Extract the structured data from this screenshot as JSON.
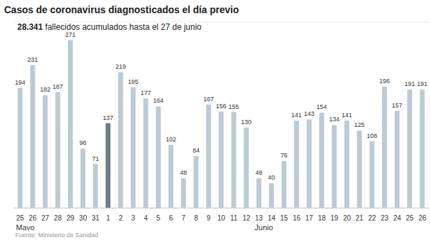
{
  "chart_data": {
    "type": "bar",
    "title": "Casos de coronavirus diagnosticados el día previo",
    "subtitle": "28.341 fallecidos acumulados hasta el 27 de junio",
    "source": "Fuente: Ministerio de Sanidad",
    "categories": [
      "25",
      "26",
      "27",
      "28",
      "29",
      "30",
      "31",
      "1",
      "2",
      "3",
      "4",
      "5",
      "6",
      "7",
      "8",
      "9",
      "10",
      "11",
      "12",
      "13",
      "14",
      "15",
      "16",
      "17",
      "18",
      "19",
      "20",
      "21",
      "22",
      "23",
      "24",
      "25",
      "26"
    ],
    "values": [
      194,
      231,
      182,
      187,
      271,
      96,
      71,
      137,
      219,
      195,
      177,
      164,
      102,
      48,
      84,
      167,
      156,
      155,
      130,
      48,
      40,
      76,
      141,
      143,
      154,
      134,
      141,
      125,
      108,
      196,
      157,
      191,
      191
    ],
    "colors": [
      "#bccad4",
      "#bccad4",
      "#bccad4",
      "#bccad4",
      "#bccad4",
      "#bccad4",
      "#bccad4",
      "#6f7c85",
      "#bccad4",
      "#bccad4",
      "#bccad4",
      "#bccad4",
      "#bccad4",
      "#bccad4",
      "#bccad4",
      "#bccad4",
      "#bccad4",
      "#bccad4",
      "#bccad4",
      "#bccad4",
      "#bccad4",
      "#bccad4",
      "#bccad4",
      "#bccad4",
      "#bccad4",
      "#bccad4",
      "#bccad4",
      "#bccad4",
      "#bccad4",
      "#bccad4",
      "#bccad4",
      "#bccad4",
      "#bccad4"
    ],
    "annotations": [
      {
        "text": "Mayo",
        "category_index": 0
      },
      {
        "text": "Junio",
        "category_index": 19
      }
    ],
    "ylim": [
      0,
      300
    ],
    "yticks": [
      0,
      50,
      100,
      150,
      200,
      250,
      300
    ],
    "grid": true,
    "data_labels": true,
    "tick_labels": "x"
  }
}
